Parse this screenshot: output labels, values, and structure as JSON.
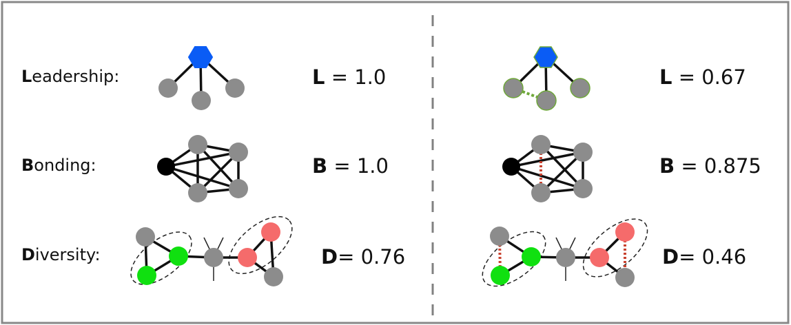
{
  "rows": [
    {
      "initial": "L",
      "rest": "eadership:"
    },
    {
      "initial": "B",
      "rest": "onding:"
    },
    {
      "initial": "D",
      "rest": "iversity:"
    }
  ],
  "metrics": {
    "left": [
      {
        "symbol": "L",
        "text": " = 1.0"
      },
      {
        "symbol": "B",
        "text": " = 1.0"
      },
      {
        "symbol": "D",
        "text": "= 0.76"
      }
    ],
    "right": [
      {
        "symbol": "L",
        "text": " = 0.67"
      },
      {
        "symbol": "B",
        "text": " = 0.875"
      },
      {
        "symbol": "D",
        "text": "= 0.46"
      }
    ]
  },
  "colors": {
    "leader": "#0a5cf5",
    "node": "#8c8c8c",
    "bond_node": "#000000",
    "green": "#10e010",
    "red": "#f56b6b",
    "missing_green": "#6fa83a",
    "missing_red": "#c8412e",
    "divider": "#808080",
    "frame": "#888888"
  }
}
